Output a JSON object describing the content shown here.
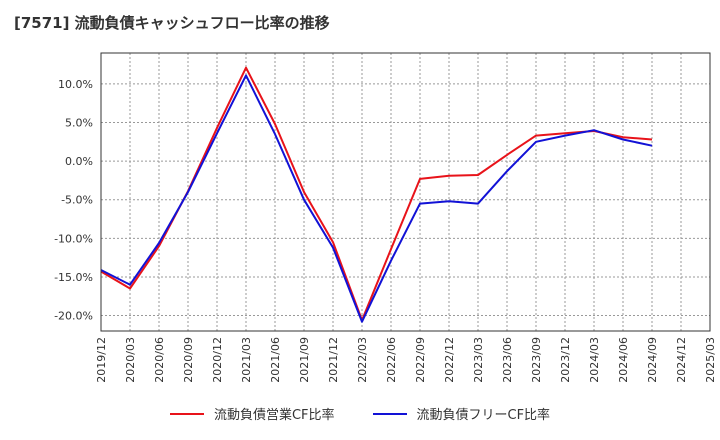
{
  "chart_data": {
    "type": "line",
    "title": "[7571]  流動負債キャッシュフロー比率の推移",
    "x": [
      "2019/12",
      "2020/03",
      "2020/06",
      "2020/09",
      "2020/12",
      "2021/03",
      "2021/06",
      "2021/09",
      "2021/12",
      "2022/03",
      "2022/06",
      "2022/09",
      "2022/12",
      "2023/03",
      "2023/06",
      "2023/09",
      "2023/12",
      "2024/03",
      "2024/06",
      "2024/09",
      "2024/12",
      "2025/03"
    ],
    "ylim": [
      -22,
      14
    ],
    "yticks": [
      -20,
      -15,
      -10,
      -5,
      0,
      5,
      10
    ],
    "ytick_labels": [
      "-20.0%",
      "-15.0%",
      "-10.0%",
      "-5.0%",
      "0.0%",
      "5.0%",
      "10.0%"
    ],
    "grid": true,
    "legend_position": "bottom",
    "series": [
      {
        "name": "流動負債営業CF比率",
        "color": "#e8131a",
        "values": [
          -14.3,
          -16.5,
          -11.0,
          -3.9,
          4.3,
          12.1,
          4.8,
          -4.0,
          -10.5,
          -20.6,
          -11.4,
          -2.3,
          -1.9,
          -1.8,
          0.8,
          3.3,
          3.6,
          3.9,
          3.1,
          2.8,
          null,
          null
        ]
      },
      {
        "name": "流動負債フリーCF比率",
        "color": "#1212d6",
        "values": [
          -14.1,
          -16.0,
          -10.6,
          -4.0,
          3.6,
          11.1,
          3.5,
          -5.0,
          -11.2,
          -20.8,
          -12.9,
          -5.5,
          -5.2,
          -5.5,
          -1.3,
          2.5,
          3.3,
          4.0,
          2.8,
          2.0,
          null,
          null
        ]
      }
    ]
  }
}
